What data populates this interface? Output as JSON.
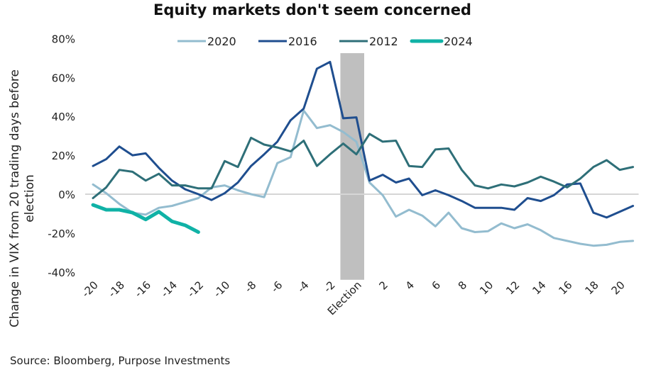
{
  "chart_data": {
    "type": "line",
    "title": "Equity markets don't seem concerned",
    "xlabel": "",
    "ylabel": "Change in VIX from 20 trading days before election",
    "source": "Source: Bloomberg, Purpose Investments",
    "x": [
      -20,
      -19,
      -18,
      -17,
      -16,
      -15,
      -14,
      -13,
      -12,
      -11,
      -10,
      -9,
      -8,
      -7,
      -6,
      -5,
      -4,
      -3,
      -2,
      -1,
      0,
      1,
      2,
      3,
      4,
      5,
      6,
      7,
      8,
      9,
      10,
      11,
      12,
      13,
      14,
      15,
      16,
      17,
      18,
      19,
      20,
      21
    ],
    "x_ticks": [
      {
        "x": -20,
        "label": "-20"
      },
      {
        "x": -18,
        "label": "-18"
      },
      {
        "x": -16,
        "label": "-16"
      },
      {
        "x": -14,
        "label": "-14"
      },
      {
        "x": -12,
        "label": "-12"
      },
      {
        "x": -10,
        "label": "-10"
      },
      {
        "x": -8,
        "label": "-8"
      },
      {
        "x": -6,
        "label": "-6"
      },
      {
        "x": -4,
        "label": "-4"
      },
      {
        "x": -2,
        "label": "-2"
      },
      {
        "x": 0,
        "label": "Election"
      },
      {
        "x": 2,
        "label": "2"
      },
      {
        "x": 4,
        "label": "4"
      },
      {
        "x": 6,
        "label": "6"
      },
      {
        "x": 8,
        "label": "8"
      },
      {
        "x": 10,
        "label": "10"
      },
      {
        "x": 12,
        "label": "12"
      },
      {
        "x": 14,
        "label": "14"
      },
      {
        "x": 16,
        "label": "16"
      },
      {
        "x": 18,
        "label": "18"
      },
      {
        "x": 20,
        "label": "20"
      }
    ],
    "y_ticks": [
      {
        "value": 80,
        "label": "80%"
      },
      {
        "value": 60,
        "label": "60%"
      },
      {
        "value": 40,
        "label": "40%"
      },
      {
        "value": 20,
        "label": "20%"
      },
      {
        "value": 0,
        "label": "0%"
      },
      {
        "value": -20,
        "label": "-20%"
      },
      {
        "value": -40,
        "label": "-40%"
      }
    ],
    "ylim": [
      -40,
      80
    ],
    "xlim": [
      -20,
      21
    ],
    "grid": false,
    "zero_line": true,
    "highlight_band": {
      "x_from": -1,
      "x_to": 0,
      "label": "Election",
      "color": "#bfbfbf"
    },
    "legend_position": "top-center",
    "series": [
      {
        "name": "2020",
        "color": "#93bccf",
        "width": "normal",
        "values": [
          5,
          0.5,
          -5,
          -9.5,
          -10.5,
          -7,
          -6,
          -4,
          -2,
          3.5,
          4.5,
          2,
          0,
          -1.5,
          16,
          19,
          43,
          34,
          35.5,
          32,
          27,
          6,
          -0.5,
          -11.5,
          -8,
          -11,
          -16.5,
          -9.5,
          -17.5,
          -19.5,
          -19,
          -15,
          -17.5,
          -15.5,
          -18.5,
          -22.5,
          -24,
          -25.5,
          -26.5,
          -26,
          -24.5,
          -24
        ]
      },
      {
        "name": "2016",
        "color": "#1f4e8f",
        "width": "normal",
        "values": [
          14.5,
          18,
          24.5,
          20,
          21,
          13.5,
          7,
          2.5,
          0,
          -3,
          0.5,
          6,
          14.5,
          20.5,
          27,
          38,
          44,
          64.5,
          68,
          39,
          39.5,
          7,
          10,
          6,
          8,
          -0.5,
          2,
          -0.5,
          -3.5,
          -7,
          -7,
          -7,
          -8,
          -2,
          -3.5,
          -0.5,
          5,
          5.5,
          -9.5,
          -12,
          -9,
          -6
        ]
      },
      {
        "name": "2012",
        "color": "#2e6f78",
        "width": "normal",
        "values": [
          -2,
          3.5,
          12.5,
          11.5,
          7,
          10.5,
          4.5,
          4.5,
          3,
          3,
          17,
          14,
          29,
          25.5,
          24,
          22,
          27.5,
          14.5,
          20.5,
          26,
          20.5,
          31,
          27,
          27.5,
          14.5,
          14,
          23,
          23.5,
          12.5,
          4.5,
          3,
          5,
          4,
          6,
          9,
          6.5,
          3.5,
          8,
          14,
          17.5,
          12.5,
          14
        ]
      },
      {
        "name": "2024",
        "color": "#10b2a6",
        "width": "thick",
        "values": [
          -5.5,
          -8,
          -8,
          -9.5,
          -13,
          -9,
          -14,
          -16,
          -19.5,
          null,
          null,
          null,
          null,
          null,
          null,
          null,
          null,
          null,
          null,
          null,
          null,
          null,
          null,
          null,
          null,
          null,
          null,
          null,
          null,
          null,
          null,
          null,
          null,
          null,
          null,
          null,
          null,
          null,
          null,
          null,
          null,
          null
        ]
      }
    ]
  }
}
